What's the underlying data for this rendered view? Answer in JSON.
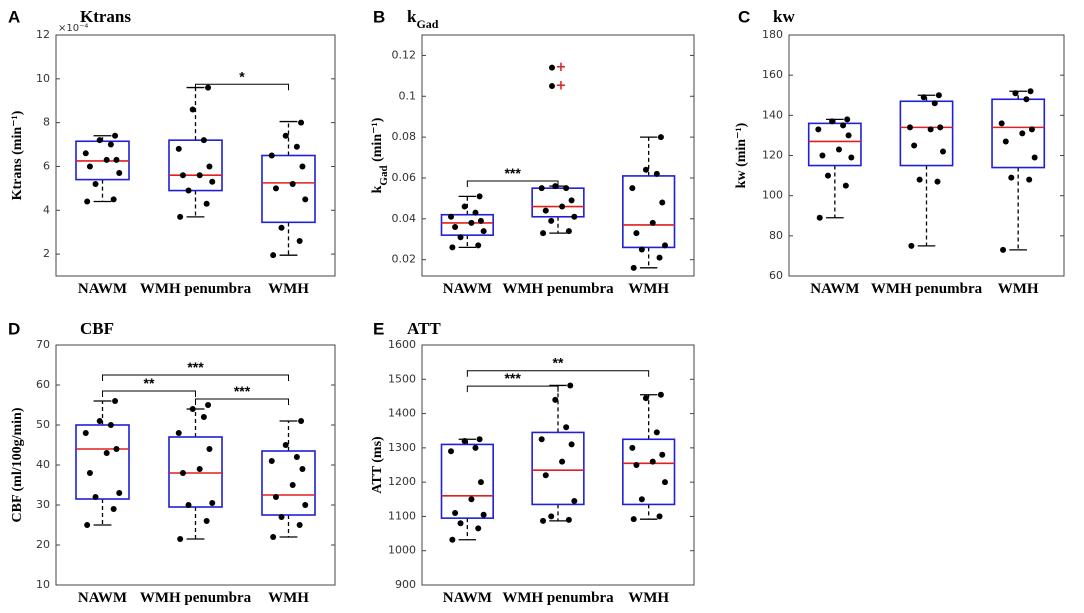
{
  "categories": [
    "NAWM",
    "WMH penumbra",
    "WMH"
  ],
  "chart_data": [
    {
      "id": "A",
      "type": "box",
      "letter": "A",
      "title": "Ktrans",
      "ylabel": "Ktrans (min⁻¹)",
      "ylim": [
        1,
        12
      ],
      "yticks": [
        2,
        4,
        6,
        8,
        10,
        12
      ],
      "exponent_label": "×10⁻⁴",
      "boxes": [
        {
          "q1": 5.4,
          "median": 6.25,
          "q3": 7.15,
          "whisker_low": 4.4,
          "whisker_high": 7.4,
          "points": [
            4.4,
            4.5,
            5.2,
            5.7,
            6.0,
            6.3,
            6.3,
            6.6,
            7.0,
            7.2,
            7.4
          ]
        },
        {
          "q1": 4.9,
          "median": 5.6,
          "q3": 7.2,
          "whisker_low": 3.7,
          "whisker_high": 9.6,
          "points": [
            3.7,
            4.3,
            4.9,
            5.3,
            5.6,
            5.6,
            6.0,
            6.8,
            7.2,
            8.6,
            9.6
          ]
        },
        {
          "q1": 3.45,
          "median": 5.25,
          "q3": 6.5,
          "whisker_low": 1.95,
          "whisker_high": 8.05,
          "points": [
            1.95,
            2.6,
            3.2,
            4.5,
            5.0,
            5.2,
            6.0,
            6.5,
            6.9,
            7.4,
            8.0
          ]
        }
      ],
      "outliers": [],
      "significance": [
        {
          "from": 1,
          "to": 2,
          "y": 9.75,
          "label": "*"
        }
      ]
    },
    {
      "id": "B",
      "type": "box",
      "letter": "B",
      "title": "k",
      "title_sub": "Gad",
      "ylabel": "k",
      "ylabel_sub": "Gad",
      "ylabel_suffix": " (min⁻¹)",
      "ylim": [
        0.012,
        0.13
      ],
      "yticks": [
        0.02,
        0.04,
        0.06,
        0.08,
        0.1,
        0.12
      ],
      "ytick_labels": [
        "0.02",
        "0.04",
        "0.06",
        "0.08",
        "0.1",
        "0.12"
      ],
      "boxes": [
        {
          "q1": 0.032,
          "median": 0.038,
          "q3": 0.042,
          "whisker_low": 0.026,
          "whisker_high": 0.051,
          "points": [
            0.026,
            0.027,
            0.031,
            0.034,
            0.036,
            0.038,
            0.039,
            0.041,
            0.043,
            0.046,
            0.051
          ]
        },
        {
          "q1": 0.041,
          "median": 0.046,
          "q3": 0.055,
          "whisker_low": 0.033,
          "whisker_high": 0.056,
          "points": [
            0.033,
            0.034,
            0.039,
            0.041,
            0.044,
            0.046,
            0.049,
            0.055,
            0.055,
            0.056
          ]
        },
        {
          "q1": 0.026,
          "median": 0.037,
          "q3": 0.061,
          "whisker_low": 0.016,
          "whisker_high": 0.08,
          "points": [
            0.016,
            0.021,
            0.025,
            0.027,
            0.033,
            0.038,
            0.048,
            0.055,
            0.062,
            0.064,
            0.08
          ]
        }
      ],
      "outliers": [
        {
          "box": 1,
          "value": 0.105,
          "point": 0.105
        },
        {
          "box": 1,
          "value": 0.114,
          "point": 0.114
        }
      ],
      "significance": [
        {
          "from": 0,
          "to": 1,
          "y": 0.0585,
          "label": "***"
        }
      ]
    },
    {
      "id": "C",
      "type": "box",
      "letter": "C",
      "title": "kw",
      "ylabel": "kw (min⁻¹)",
      "ylim": [
        60,
        180
      ],
      "yticks": [
        60,
        80,
        100,
        120,
        140,
        160,
        180
      ],
      "boxes": [
        {
          "q1": 115,
          "median": 127,
          "q3": 136,
          "whisker_low": 89,
          "whisker_high": 138,
          "points": [
            89,
            105,
            110,
            119,
            120,
            123,
            130,
            133,
            135,
            137,
            138
          ]
        },
        {
          "q1": 115,
          "median": 134,
          "q3": 147,
          "whisker_low": 75,
          "whisker_high": 150,
          "points": [
            75,
            107,
            108,
            122,
            125,
            133,
            134,
            134,
            146,
            149,
            150
          ]
        },
        {
          "q1": 114,
          "median": 134,
          "q3": 148,
          "whisker_low": 73,
          "whisker_high": 152,
          "points": [
            73,
            108,
            109,
            119,
            127,
            131,
            133,
            136,
            148,
            151,
            152
          ]
        }
      ],
      "outliers": [],
      "significance": []
    },
    {
      "id": "D",
      "type": "box",
      "letter": "D",
      "title": "CBF",
      "ylabel": "CBF (ml/100g/min)",
      "ylim": [
        10,
        70
      ],
      "yticks": [
        10,
        20,
        30,
        40,
        50,
        60,
        70
      ],
      "boxes": [
        {
          "q1": 31.5,
          "median": 44,
          "q3": 50,
          "whisker_low": 25,
          "whisker_high": 56,
          "points": [
            25,
            29,
            32,
            33,
            38,
            43,
            44,
            48,
            50,
            51,
            56
          ]
        },
        {
          "q1": 29.5,
          "median": 38,
          "q3": 47,
          "whisker_low": 21.5,
          "whisker_high": 54,
          "points": [
            21.5,
            26,
            30,
            30.5,
            38,
            39,
            44,
            48,
            52,
            54,
            55
          ]
        },
        {
          "q1": 27.5,
          "median": 32.5,
          "q3": 43.5,
          "whisker_low": 22,
          "whisker_high": 51,
          "points": [
            22,
            25,
            27,
            30,
            32,
            35,
            39,
            41,
            42,
            45,
            51
          ]
        }
      ],
      "outliers": [],
      "significance": [
        {
          "from": 0,
          "to": 2,
          "y": 62.5,
          "label": "***"
        },
        {
          "from": 0,
          "to": 1,
          "y": 58.5,
          "label": "**"
        },
        {
          "from": 1,
          "to": 2,
          "y": 56.5,
          "label": "***"
        }
      ]
    },
    {
      "id": "E",
      "type": "box",
      "letter": "E",
      "title": "ATT",
      "ylabel": "ATT (ms)",
      "ylim": [
        900,
        1600
      ],
      "yticks": [
        900,
        1000,
        1100,
        1200,
        1300,
        1400,
        1500,
        1600
      ],
      "boxes": [
        {
          "q1": 1095,
          "median": 1160,
          "q3": 1310,
          "whisker_low": 1032,
          "whisker_high": 1325,
          "points": [
            1032,
            1065,
            1080,
            1105,
            1110,
            1150,
            1200,
            1290,
            1300,
            1320,
            1325
          ]
        },
        {
          "q1": 1135,
          "median": 1235,
          "q3": 1345,
          "whisker_low": 1087,
          "whisker_high": 1482,
          "points": [
            1087,
            1090,
            1100,
            1145,
            1220,
            1260,
            1310,
            1325,
            1360,
            1440,
            1482
          ]
        },
        {
          "q1": 1135,
          "median": 1255,
          "q3": 1325,
          "whisker_low": 1092,
          "whisker_high": 1455,
          "points": [
            1092,
            1100,
            1150,
            1200,
            1250,
            1260,
            1280,
            1300,
            1345,
            1445,
            1455
          ]
        }
      ],
      "outliers": [],
      "significance": [
        {
          "from": 0,
          "to": 2,
          "y": 1525,
          "label": "**"
        },
        {
          "from": 0,
          "to": 1,
          "y": 1480,
          "label": "***"
        }
      ]
    }
  ],
  "colors": {
    "box": "#1f1fd6",
    "median": "#e01f1f",
    "outlier": "#e01f1f",
    "point": "#000000",
    "axis": "#444444"
  }
}
